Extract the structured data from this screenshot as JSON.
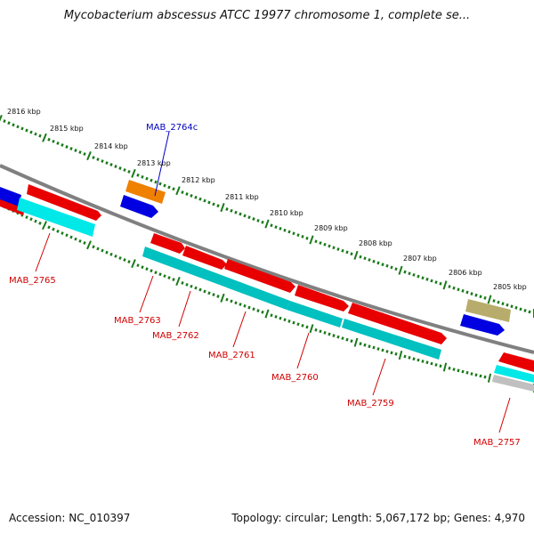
{
  "title": "Mycobacterium abscessus ATCC 19977 chromosome 1, complete se...",
  "accession": "Accession: NC_010397",
  "topology": "Topology: circular; Length: 5,067,172 bp; Genes: 4,970",
  "colors": {
    "backbone": "#808080",
    "ticks": "#1a7a1a",
    "red_gene": "#e80000",
    "cyan_gene": "#00c8c8",
    "blue_gene": "#0000e0",
    "orange_gene": "#f08000",
    "khaki_gene": "#b8ac6c",
    "grey_gene": "#c0c0c0",
    "red_label": "#d00000",
    "blue_label": "#0000c0"
  },
  "kbp_labels": [
    "2816 kbp",
    "2815 kbp",
    "2814 kbp",
    "2813 kbp",
    "2812 kbp",
    "2811 kbp",
    "2810 kbp",
    "2809 kbp",
    "2808 kbp",
    "2807 kbp",
    "2806 kbp",
    "2805 kbp"
  ],
  "gene_labels": [
    "MAB_2764c",
    "MAB_2765",
    "MAB_2763",
    "MAB_2762",
    "MAB_2761",
    "MAB_2760",
    "MAB_2759",
    "MAB_2757"
  ]
}
